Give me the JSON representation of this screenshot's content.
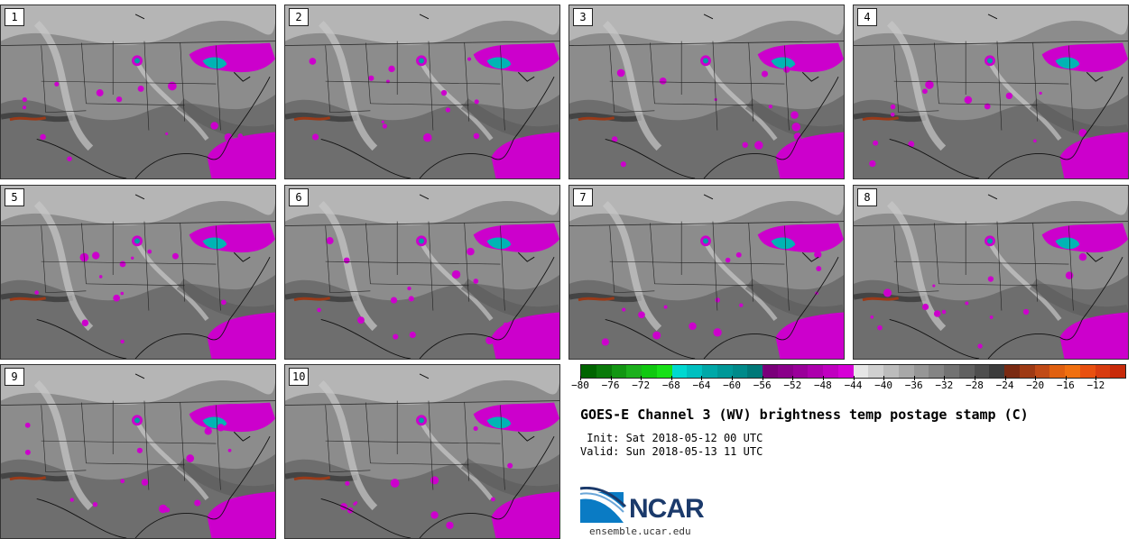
{
  "panels": [
    {
      "label": "1"
    },
    {
      "label": "2"
    },
    {
      "label": "3"
    },
    {
      "label": "4"
    },
    {
      "label": "5"
    },
    {
      "label": "6"
    },
    {
      "label": "7"
    },
    {
      "label": "8"
    },
    {
      "label": "9"
    },
    {
      "label": "10"
    }
  ],
  "colorbar": {
    "colors": [
      "#006400",
      "#0a7a0a",
      "#129612",
      "#1cb01c",
      "#10c810",
      "#18e018",
      "#00d8d0",
      "#00c0c0",
      "#00a8a8",
      "#009898",
      "#008a8a",
      "#007878",
      "#7a007a",
      "#8a008a",
      "#9a009a",
      "#ad00ad",
      "#c000c0",
      "#d600d6",
      "#e6e6e6",
      "#d0d0d0",
      "#bcbcbc",
      "#a8a8a8",
      "#969696",
      "#848484",
      "#727272",
      "#606060",
      "#4e4e4e",
      "#3c3c3c",
      "#7a2a12",
      "#9e3a14",
      "#c04a16",
      "#e06010",
      "#f07010",
      "#e85010",
      "#d83c10",
      "#c82a0a"
    ],
    "ticks": [
      "−80",
      "−76",
      "−72",
      "−68",
      "−64",
      "−60",
      "−56",
      "−52",
      "−48",
      "−44",
      "−40",
      "−36",
      "−32",
      "−28",
      "−24",
      "−20",
      "−16",
      "−12"
    ]
  },
  "title": "GOES-E Channel 3 (WV) brightness temp postage stamp (C)",
  "init": " Init: Sat 2018-05-12 00 UTC",
  "valid": "Valid: Sun 2018-05-13 11 UTC",
  "logo_text": "NCAR",
  "url": "ensemble.ucar.edu"
}
